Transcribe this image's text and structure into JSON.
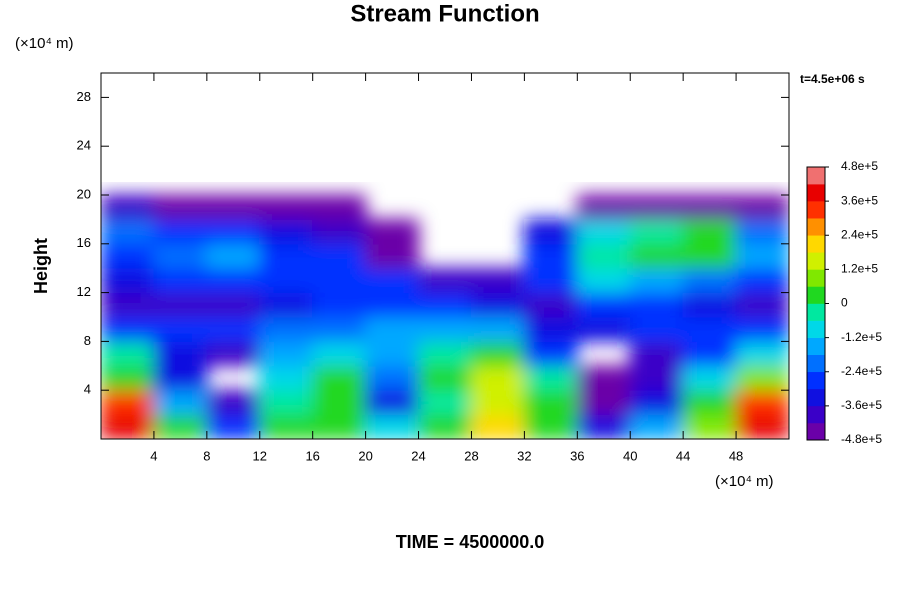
{
  "chart_data": {
    "type": "contour",
    "title": "Stream Function",
    "x_unit": "(×10⁴ m)",
    "y_unit": "(×10⁴ m)",
    "ylabel": "Height",
    "time_label": "t=4.5e+06 s",
    "footer": "TIME = 4500000.0",
    "xlim": [
      0,
      52
    ],
    "ylim": [
      0,
      30
    ],
    "xticks": [
      4,
      8,
      12,
      16,
      20,
      24,
      28,
      32,
      36,
      40,
      44,
      48
    ],
    "yticks": [
      4,
      8,
      12,
      16,
      20,
      24,
      28
    ],
    "x": [
      2,
      6,
      10,
      14,
      18,
      22,
      26,
      30,
      34,
      38,
      42,
      46,
      50
    ],
    "y": [
      1,
      3,
      5,
      7,
      9,
      11,
      13,
      15,
      17,
      19
    ],
    "z": [
      [
        400000,
        0,
        -300000,
        20000,
        50000,
        -100000,
        0,
        200000,
        50000,
        -350000,
        -150000,
        100000,
        400000
      ],
      [
        300000,
        -150000,
        -420000,
        -50000,
        50000,
        -350000,
        -50000,
        150000,
        50000,
        -450000,
        -350000,
        0,
        300000
      ],
      [
        50000,
        -350000,
        null,
        -100000,
        0,
        -200000,
        0,
        150000,
        -50000,
        -450000,
        -400000,
        -100000,
        100000
      ],
      [
        -50000,
        -350000,
        -420000,
        -150000,
        -100000,
        -150000,
        -50000,
        50000,
        -300000,
        null,
        -400000,
        -250000,
        -100000
      ],
      [
        -300000,
        -300000,
        -300000,
        -200000,
        -200000,
        -150000,
        -150000,
        -150000,
        -350000,
        -350000,
        -250000,
        -300000,
        -300000
      ],
      [
        -400000,
        -380000,
        -380000,
        -350000,
        -300000,
        -300000,
        -300000,
        -320000,
        -380000,
        -300000,
        -300000,
        -350000,
        -380000
      ],
      [
        -350000,
        -300000,
        -250000,
        -300000,
        -250000,
        -300000,
        -400000,
        -420000,
        -300000,
        -100000,
        -150000,
        -200000,
        -250000
      ],
      [
        -300000,
        -200000,
        -150000,
        -250000,
        -300000,
        -450000,
        null,
        null,
        -250000,
        -50000,
        50000,
        50000,
        -150000
      ],
      [
        -200000,
        -250000,
        -300000,
        -350000,
        -400000,
        -450000,
        null,
        null,
        -350000,
        -100000,
        -50000,
        50000,
        -200000
      ],
      [
        -400000,
        -450000,
        -470000,
        -470000,
        -470000,
        null,
        null,
        null,
        null,
        -450000,
        -450000,
        -450000,
        -450000
      ]
    ],
    "clim": [
      -480000,
      480000
    ],
    "colors": [
      "#6a00a8",
      "#3a00c8",
      "#1010e0",
      "#0030ff",
      "#0070ff",
      "#00a8ff",
      "#00d8e8",
      "#00e8a0",
      "#20d820",
      "#80e800",
      "#d0f000",
      "#ffd800",
      "#ff9000",
      "#ff3000",
      "#e80000",
      "#f07070"
    ],
    "colorbar_ticks": [
      {
        "value": 480000,
        "label": "4.8e+5"
      },
      {
        "value": 360000,
        "label": "3.6e+5"
      },
      {
        "value": 240000,
        "label": "2.4e+5"
      },
      {
        "value": 120000,
        "label": "1.2e+5"
      },
      0,
      {
        "value": -120000,
        "label": "-1.2e+5"
      },
      {
        "value": -240000,
        "label": "-2.4e+5"
      },
      {
        "value": -360000,
        "label": "-3.6e+5"
      },
      {
        "value": -480000,
        "label": "-4.8e+5"
      }
    ]
  }
}
